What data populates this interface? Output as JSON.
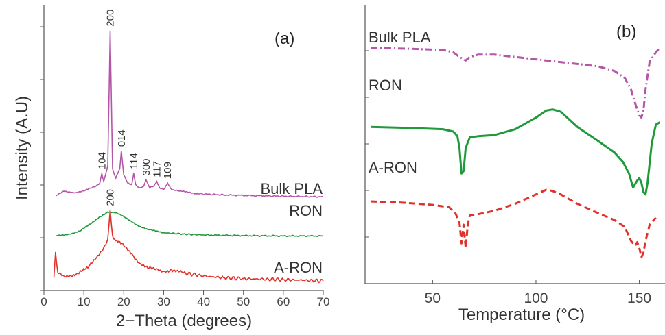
{
  "chart_data": [
    {
      "type": "line",
      "panel_label": "(a)",
      "xlabel": "2−Theta (degrees)",
      "ylabel": "Intensity (A.U)",
      "xlim": [
        0,
        70
      ],
      "x_ticks": [
        0,
        10,
        20,
        30,
        40,
        50,
        60,
        70
      ],
      "y_ticks_shown": 6,
      "grid": false,
      "series": [
        {
          "name": "Bulk PLA",
          "color": "#b455a8",
          "offset": 2.6,
          "x": [
            3,
            5,
            8,
            10,
            12,
            13,
            14,
            14.5,
            15,
            16,
            16.6,
            17.2,
            18,
            19,
            19.4,
            20,
            21,
            22,
            22.5,
            23,
            24,
            25,
            25.6,
            26.5,
            27.5,
            28.3,
            29,
            30,
            31,
            32,
            34,
            38,
            45,
            55,
            70
          ],
          "y": [
            0.05,
            0.2,
            0.15,
            0.2,
            0.3,
            0.35,
            0.45,
            0.75,
            0.5,
            1.0,
            5.2,
            0.9,
            0.6,
            0.9,
            1.45,
            0.7,
            0.45,
            0.4,
            0.75,
            0.4,
            0.3,
            0.35,
            0.55,
            0.3,
            0.35,
            0.5,
            0.3,
            0.25,
            0.45,
            0.25,
            0.2,
            0.12,
            0.08,
            0.05,
            0.02
          ]
        },
        {
          "name": "RON",
          "color": "#1f9a3a",
          "offset": 1.4,
          "x": [
            3,
            6,
            9,
            12,
            14,
            16,
            18,
            20,
            22,
            24,
            26,
            30,
            35,
            40,
            50,
            60,
            70
          ],
          "y": [
            0.0,
            0.05,
            0.15,
            0.4,
            0.6,
            0.75,
            0.72,
            0.6,
            0.45,
            0.3,
            0.2,
            0.1,
            0.06,
            0.03,
            0.01,
            0.0,
            0.0
          ]
        },
        {
          "name": "A-RON",
          "color": "#e0322a",
          "offset": 0.0,
          "x": [
            2.5,
            2.9,
            3.5,
            5,
            8,
            11,
            13,
            15,
            16,
            16.6,
            17.2,
            18,
            20,
            22,
            24,
            26,
            28,
            30,
            32,
            35,
            40,
            45,
            50,
            55,
            60,
            65,
            70
          ],
          "y": [
            0.1,
            0.9,
            0.25,
            0.15,
            0.2,
            0.4,
            0.7,
            1.05,
            1.3,
            2.2,
            1.4,
            1.25,
            1.1,
            0.85,
            0.55,
            0.4,
            0.35,
            0.3,
            0.35,
            0.25,
            0.15,
            0.1,
            0.07,
            0.05,
            0.04,
            0.02,
            0.0
          ]
        }
      ],
      "peak_labels": [
        {
          "text": "200",
          "x": 16.6,
          "series": "Bulk PLA"
        },
        {
          "text": "104",
          "x": 14.5,
          "series": "Bulk PLA"
        },
        {
          "text": "014",
          "x": 19.4,
          "series": "Bulk PLA"
        },
        {
          "text": "114",
          "x": 22.5,
          "series": "Bulk PLA"
        },
        {
          "text": "300",
          "x": 25.6,
          "series": "Bulk PLA"
        },
        {
          "text": "117",
          "x": 28.3,
          "series": "Bulk PLA"
        },
        {
          "text": "109",
          "x": 31.0,
          "series": "Bulk PLA"
        },
        {
          "text": "200",
          "x": 16.6,
          "series": "A-RON"
        }
      ]
    },
    {
      "type": "line",
      "panel_label": "(b)",
      "xlabel": "Temperature (°C)",
      "xlim": [
        20,
        160
      ],
      "x_ticks": [
        50,
        100,
        150
      ],
      "y_ticks_shown": 6,
      "grid": false,
      "series": [
        {
          "name": "Bulk PLA",
          "color": "#b455a8",
          "style": "dashdot",
          "x": [
            20,
            40,
            55,
            60,
            63,
            66,
            68,
            72,
            80,
            90,
            100,
            110,
            120,
            130,
            138,
            143,
            146,
            148,
            150,
            151,
            152,
            153,
            155,
            158,
            160
          ],
          "y": [
            8.6,
            8.55,
            8.5,
            8.4,
            8.2,
            8.05,
            8.2,
            8.3,
            8.3,
            8.2,
            8.1,
            8.0,
            7.9,
            7.8,
            7.6,
            7.3,
            6.8,
            6.2,
            5.7,
            5.6,
            5.9,
            6.8,
            8.0,
            8.4,
            8.6
          ]
        },
        {
          "name": "RON",
          "color": "#1f9a3a",
          "style": "solid",
          "x": [
            20,
            40,
            55,
            60,
            62,
            63,
            64,
            65,
            66,
            68,
            72,
            80,
            90,
            100,
            105,
            108,
            112,
            120,
            130,
            138,
            142,
            145,
            147,
            149,
            150,
            151,
            152,
            153,
            154,
            156,
            158,
            160
          ],
          "y": [
            5.2,
            5.15,
            5.1,
            5.0,
            4.8,
            4.3,
            3.2,
            3.3,
            4.3,
            4.75,
            4.8,
            4.85,
            5.1,
            5.6,
            5.9,
            5.95,
            5.85,
            5.2,
            4.6,
            4.1,
            3.7,
            3.2,
            2.6,
            2.9,
            3.0,
            2.8,
            2.4,
            2.3,
            2.8,
            4.5,
            5.3,
            5.4
          ]
        },
        {
          "name": "A-RON",
          "color": "#e0322a",
          "style": "dashed",
          "x": [
            20,
            35,
            50,
            58,
            61,
            63,
            64,
            65,
            66,
            67,
            68,
            72,
            80,
            90,
            100,
            105,
            108,
            112,
            120,
            130,
            138,
            143,
            146,
            148,
            149,
            150,
            151,
            152,
            153,
            155,
            158
          ],
          "y": [
            2.0,
            1.95,
            1.85,
            1.75,
            1.5,
            1.1,
            0.2,
            1.0,
            0.0,
            1.0,
            1.4,
            1.45,
            1.6,
            1.9,
            2.3,
            2.5,
            2.45,
            2.3,
            1.9,
            1.5,
            1.2,
            0.9,
            0.3,
            0.1,
            0.25,
            0.0,
            -0.4,
            -0.2,
            0.3,
            1.0,
            1.3
          ]
        }
      ],
      "series_labels": [
        "Bulk PLA",
        "RON",
        "A-RON"
      ]
    }
  ]
}
